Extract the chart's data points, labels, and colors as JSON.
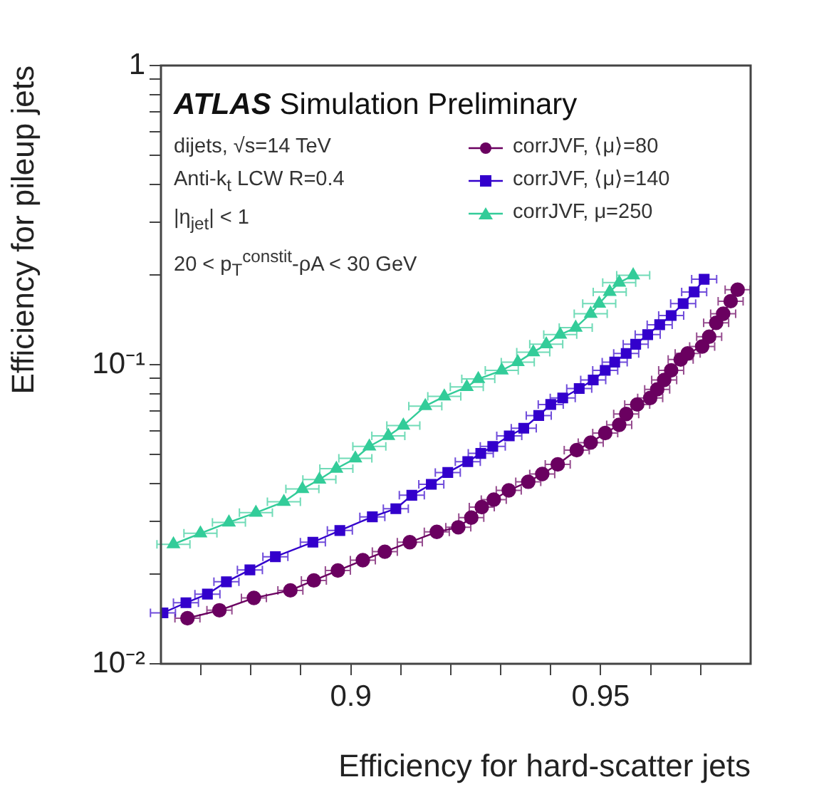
{
  "chart_data": {
    "type": "line",
    "xlabel": "Efficiency for hard-scatter jets",
    "ylabel": "Efficiency for pileup jets",
    "log": "y",
    "legend": "top right",
    "grid": false,
    "xlim": [
      0.862,
      0.98
    ],
    "ylim": [
      0.01,
      1
    ],
    "xticks": [
      {
        "value": 0.87,
        "label": null
      },
      {
        "value": 0.88,
        "label": null
      },
      {
        "value": 0.89,
        "label": null
      },
      0.9,
      {
        "value": 0.91,
        "label": null
      },
      {
        "value": 0.92,
        "label": null
      },
      {
        "value": 0.93,
        "label": null
      },
      {
        "value": 0.94,
        "label": null
      },
      0.95,
      {
        "value": 0.96,
        "label": null
      },
      {
        "value": 0.97,
        "label": null
      }
    ],
    "yticks": [
      {
        "value": 0.01,
        "label": "10⁻²"
      },
      {
        "value": 0.02,
        "label": null
      },
      {
        "value": 0.03,
        "label": null
      },
      {
        "value": 0.04,
        "label": null
      },
      {
        "value": 0.05,
        "label": null
      },
      {
        "value": 0.06,
        "label": null
      },
      {
        "value": 0.07,
        "label": null
      },
      {
        "value": 0.08,
        "label": null
      },
      {
        "value": 0.09,
        "label": null
      },
      {
        "value": 0.1,
        "label": "10⁻¹"
      },
      {
        "value": 0.2,
        "label": null
      },
      {
        "value": 0.3,
        "label": null
      },
      {
        "value": 0.4,
        "label": null
      },
      {
        "value": 0.5,
        "label": null
      },
      {
        "value": 0.6,
        "label": null
      },
      {
        "value": 0.7,
        "label": null
      },
      {
        "value": 0.8,
        "label": null
      },
      {
        "value": 0.9,
        "label": null
      },
      1
    ],
    "annotations": [
      "ATLAS Simulation Preliminary",
      "dijets, √s=14 TeV",
      "Anti-k$_{t}$ LCW R=0.4",
      "|η$_{jet}$| < 1",
      "20 < p$_{T}$$^{constit}$-ρA < 30 GeV"
    ],
    "series": [
      {
        "name": "corrJVF, ⟨μ⟩=80",
        "color": "#6a0060",
        "marker": "circle",
        "x": [
          0.8673,
          0.8737,
          0.8806,
          0.8879,
          0.8926,
          0.8974,
          0.9024,
          0.9068,
          0.9118,
          0.9172,
          0.9215,
          0.9241,
          0.9262,
          0.9286,
          0.9316,
          0.9355,
          0.9383,
          0.9414,
          0.9452,
          0.948,
          0.9509,
          0.9537,
          0.9551,
          0.9573,
          0.9599,
          0.9613,
          0.9627,
          0.9641,
          0.966,
          0.9674,
          0.9703,
          0.9717,
          0.9731,
          0.9745,
          0.976,
          0.9774
        ],
        "values": [
          0.0142,
          0.0151,
          0.0166,
          0.0176,
          0.019,
          0.0205,
          0.0222,
          0.0237,
          0.0255,
          0.0276,
          0.0286,
          0.0308,
          0.0334,
          0.0354,
          0.038,
          0.0406,
          0.0431,
          0.0464,
          0.0518,
          0.0549,
          0.0591,
          0.0629,
          0.0684,
          0.0736,
          0.0774,
          0.0827,
          0.0889,
          0.0957,
          0.104,
          0.109,
          0.115,
          0.124,
          0.138,
          0.148,
          0.163,
          0.178
        ],
        "xerrors": [
          0.0025,
          0.0025,
          0.0025,
          0.0025,
          0.0025,
          0.0025,
          0.0025,
          0.0025,
          0.0025,
          0.0025,
          0.0025,
          0.0025,
          0.0025,
          0.0025,
          0.0025,
          0.0025,
          0.0025,
          0.0025,
          0.0025,
          0.0025,
          0.0025,
          0.0025,
          0.0025,
          0.0025,
          0.0025,
          0.0025,
          0.0025,
          0.0025,
          0.0025,
          0.0025,
          0.0025,
          0.0025,
          0.0025,
          0.0025,
          0.0025,
          0.0025
        ]
      },
      {
        "name": "corrJVF, ⟨μ⟩=140",
        "color": "#3300cc",
        "marker": "square",
        "x": [
          0.8624,
          0.867,
          0.8713,
          0.8751,
          0.8798,
          0.8849,
          0.8924,
          0.8978,
          0.9043,
          0.909,
          0.9122,
          0.9161,
          0.9194,
          0.9234,
          0.926,
          0.9284,
          0.9317,
          0.9346,
          0.9376,
          0.94,
          0.9424,
          0.9457,
          0.9485,
          0.9509,
          0.9528,
          0.9551,
          0.957,
          0.9594,
          0.9618,
          0.9641,
          0.9665,
          0.9687,
          0.9707
        ],
        "values": [
          0.0148,
          0.016,
          0.0171,
          0.0188,
          0.0206,
          0.0228,
          0.0255,
          0.0279,
          0.031,
          0.033,
          0.0366,
          0.0398,
          0.0436,
          0.0474,
          0.0505,
          0.0533,
          0.0578,
          0.0613,
          0.0676,
          0.0736,
          0.0774,
          0.0832,
          0.0889,
          0.0957,
          0.102,
          0.109,
          0.117,
          0.126,
          0.136,
          0.146,
          0.16,
          0.175,
          0.193
        ],
        "xerrors": [
          0.0025,
          0.0025,
          0.0025,
          0.0025,
          0.0025,
          0.0025,
          0.0025,
          0.0025,
          0.0025,
          0.0025,
          0.0025,
          0.0025,
          0.0025,
          0.0025,
          0.0025,
          0.0025,
          0.0025,
          0.0025,
          0.0025,
          0.0025,
          0.0025,
          0.0025,
          0.0025,
          0.0025,
          0.0025,
          0.0025,
          0.0025,
          0.0025,
          0.0025,
          0.0025,
          0.0025,
          0.0025,
          0.0025
        ]
      },
      {
        "name": "corrJVF, μ=250",
        "color": "#33cc99",
        "marker": "triangle",
        "x": [
          0.8645,
          0.8699,
          0.8756,
          0.881,
          0.8866,
          0.8903,
          0.8937,
          0.8971,
          0.9009,
          0.9037,
          0.9075,
          0.9105,
          0.9149,
          0.9187,
          0.9232,
          0.9255,
          0.9302,
          0.9334,
          0.9365,
          0.9391,
          0.9419,
          0.945,
          0.948,
          0.9497,
          0.9518,
          0.9537,
          0.9565
        ],
        "values": [
          0.0251,
          0.0273,
          0.0297,
          0.032,
          0.0348,
          0.0384,
          0.0413,
          0.0449,
          0.0486,
          0.0533,
          0.0578,
          0.0626,
          0.0727,
          0.0783,
          0.0842,
          0.0896,
          0.0957,
          0.102,
          0.11,
          0.117,
          0.126,
          0.133,
          0.148,
          0.16,
          0.175,
          0.188,
          0.199
        ],
        "xerrors": [
          0.0033,
          0.0033,
          0.0033,
          0.0033,
          0.0033,
          0.0033,
          0.0033,
          0.0033,
          0.0033,
          0.0033,
          0.0033,
          0.0033,
          0.0033,
          0.0033,
          0.0033,
          0.0033,
          0.0033,
          0.0033,
          0.0033,
          0.0033,
          0.0033,
          0.0033,
          0.0033,
          0.0033,
          0.0033,
          0.0033,
          0.0033
        ]
      }
    ]
  }
}
